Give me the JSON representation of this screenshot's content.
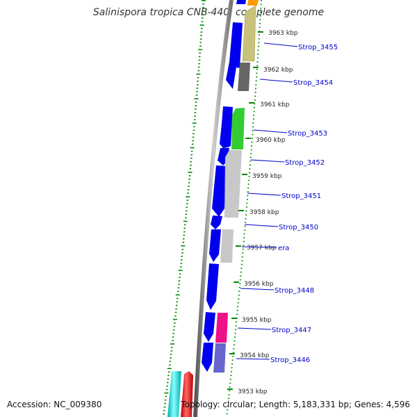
{
  "title": "Salinispora tropica CNB-440, complete genome",
  "footer": {
    "accession": "Accession: NC_009380",
    "topology": "Topology: circular; Length: 5,183,331 bp; Genes: 4,596"
  },
  "ticks": [
    "3963 kbp",
    "3962 kbp",
    "3961 kbp",
    "3960 kbp",
    "3959 kbp",
    "3958 kbp",
    "3957 kbp",
    "3956 kbp",
    "3955 kbp",
    "3954 kbp",
    "3953 kbp"
  ],
  "gene_labels": [
    "Strop_3455",
    "Strop_3454",
    "Strop_3453",
    "Strop_3452",
    "Strop_3451",
    "Strop_3450",
    "era",
    "Strop_3448",
    "Strop_3447",
    "Strop_3446"
  ],
  "colors": {
    "forward_strand": "#0000ee",
    "reverse_olive": "#c8c27a",
    "reverse_dark": "#666666",
    "reverse_green": "#33cc33",
    "reverse_grey": "#c8c8c8",
    "reverse_magenta": "#ee1188",
    "reverse_slate": "#6666cc",
    "reverse_orange": "#ff9900",
    "cyan": "#11cccc",
    "red": "#ee0000",
    "gc_dots": "#008800",
    "label_line": "#0000cc"
  }
}
